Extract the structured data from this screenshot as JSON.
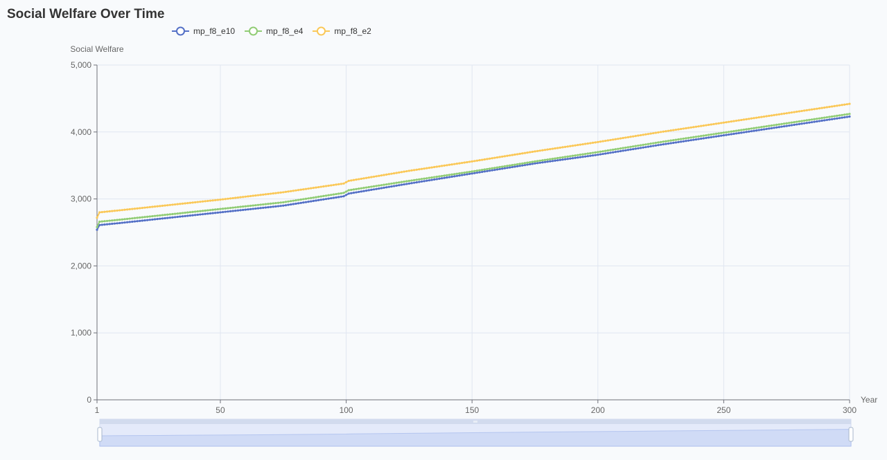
{
  "chart_data": {
    "type": "line",
    "title": "Social Welfare Over Time",
    "xlabel": "Year",
    "ylabel": "Social Welfare",
    "xlim": [
      1,
      300
    ],
    "ylim": [
      0,
      5000
    ],
    "x_ticks": [
      "1",
      "50",
      "100",
      "150",
      "200",
      "250",
      "300"
    ],
    "x_tick_values": [
      1,
      50,
      100,
      150,
      200,
      250,
      300
    ],
    "y_ticks": [
      "0",
      "1,000",
      "2,000",
      "3,000",
      "4,000",
      "5,000"
    ],
    "y_tick_values": [
      0,
      1000,
      2000,
      3000,
      4000,
      5000
    ],
    "grid": true,
    "legend_position": "top-left",
    "series": [
      {
        "name": "mp_f8_e10",
        "color": "#5470c6",
        "x": [
          1,
          2,
          10,
          25,
          50,
          75,
          99,
          101,
          125,
          150,
          175,
          200,
          225,
          250,
          275,
          300
        ],
        "y": [
          2540,
          2610,
          2640,
          2700,
          2800,
          2900,
          3040,
          3080,
          3230,
          3380,
          3530,
          3660,
          3810,
          3950,
          4090,
          4230
        ]
      },
      {
        "name": "mp_f8_e4",
        "color": "#91cc75",
        "x": [
          1,
          2,
          10,
          25,
          50,
          75,
          99,
          101,
          125,
          150,
          175,
          200,
          225,
          250,
          275,
          300
        ],
        "y": [
          2580,
          2660,
          2690,
          2750,
          2850,
          2950,
          3090,
          3130,
          3270,
          3410,
          3560,
          3700,
          3850,
          3990,
          4130,
          4270
        ]
      },
      {
        "name": "mp_f8_e2",
        "color": "#fac858",
        "x": [
          1,
          2,
          10,
          25,
          50,
          75,
          99,
          101,
          125,
          150,
          175,
          200,
          225,
          250,
          275,
          300
        ],
        "y": [
          2720,
          2800,
          2830,
          2890,
          2990,
          3100,
          3230,
          3270,
          3420,
          3560,
          3710,
          3850,
          4000,
          4140,
          4280,
          4420
        ]
      }
    ]
  },
  "datazoom": {
    "start": 1,
    "end": 300,
    "colors": {
      "fill": "#dde4f8",
      "border": "#d2dbee",
      "handle": "#ffffff"
    }
  },
  "icons": {
    "legend_marker": "circle-line-icon",
    "zoom_handle": "grip-handle-icon"
  }
}
